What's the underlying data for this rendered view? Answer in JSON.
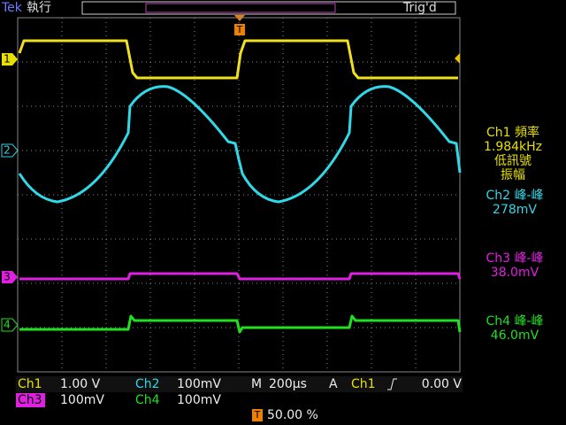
{
  "header": {
    "brand": "Tek",
    "state": "執行",
    "trigger_status": "Trig'd",
    "trigger_marker": "T"
  },
  "channel_markers": [
    "1",
    "2",
    "3",
    "4"
  ],
  "measurements": [
    {
      "label": "Ch1 頻率",
      "value": "1.984kHz",
      "note_1": "低訊號",
      "note_2": "振幅"
    },
    {
      "label": "Ch2 峰-峰",
      "value": "278mV"
    },
    {
      "label": "Ch3 峰-峰",
      "value": "38.0mV"
    },
    {
      "label": "Ch4 峰-峰",
      "value": "46.0mV"
    }
  ],
  "status": {
    "ch1": {
      "label": "Ch1",
      "scale": "1.00 V"
    },
    "ch2": {
      "label": "Ch2",
      "scale": "100mV"
    },
    "ch3": {
      "label": "Ch3",
      "scale": "100mV"
    },
    "ch4": {
      "label": "Ch4",
      "scale": "100mV"
    },
    "timebase": {
      "label": "M",
      "scale": "200µs"
    },
    "trigger": {
      "mode": "A",
      "source": "Ch1",
      "level": "0.00 V"
    },
    "position": {
      "marker": "T",
      "value": "50.00 %"
    }
  }
}
